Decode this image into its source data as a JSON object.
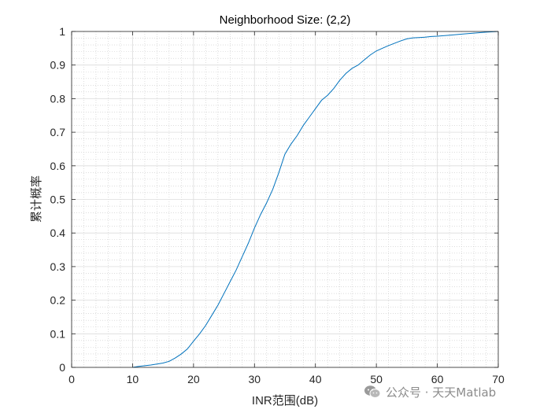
{
  "chart_data": {
    "type": "line",
    "title": "Neighborhood Size: (2,2)",
    "xlabel": "INR范围(dB)",
    "ylabel": "累计概率",
    "xlim": [
      0,
      70
    ],
    "ylim": [
      0,
      1
    ],
    "xticks": [
      0,
      10,
      20,
      30,
      40,
      50,
      60,
      70
    ],
    "yticks": [
      0,
      0.1,
      0.2,
      0.3,
      0.4,
      0.5,
      0.6,
      0.7,
      0.8,
      0.9,
      1
    ],
    "grid": "on",
    "minor_grid": "on",
    "series_color": "#0072BD",
    "series": [
      {
        "x": [
          10,
          11,
          12,
          13,
          14,
          15,
          16,
          17,
          18,
          19,
          20,
          21,
          22,
          23,
          24,
          25,
          26,
          27,
          28,
          29,
          30,
          31,
          32,
          33,
          34,
          35,
          36,
          37,
          38,
          39,
          40,
          41,
          42,
          43,
          44,
          45,
          46,
          47,
          48,
          49,
          50,
          51,
          52,
          53,
          54,
          55,
          56,
          57,
          58,
          59,
          60,
          62,
          64,
          66,
          68,
          70
        ],
        "y": [
          0.0,
          0.003,
          0.005,
          0.007,
          0.01,
          0.013,
          0.018,
          0.028,
          0.04,
          0.055,
          0.078,
          0.1,
          0.125,
          0.155,
          0.185,
          0.22,
          0.255,
          0.29,
          0.33,
          0.37,
          0.415,
          0.455,
          0.49,
          0.53,
          0.58,
          0.635,
          0.665,
          0.69,
          0.72,
          0.745,
          0.77,
          0.795,
          0.81,
          0.83,
          0.855,
          0.875,
          0.89,
          0.9,
          0.915,
          0.93,
          0.942,
          0.95,
          0.958,
          0.965,
          0.972,
          0.978,
          0.981,
          0.982,
          0.983,
          0.985,
          0.986,
          0.989,
          0.992,
          0.995,
          0.998,
          1.0
        ]
      }
    ]
  },
  "watermark": {
    "icon": "wechat-icon",
    "text": "公众号 · 天天Matlab"
  }
}
